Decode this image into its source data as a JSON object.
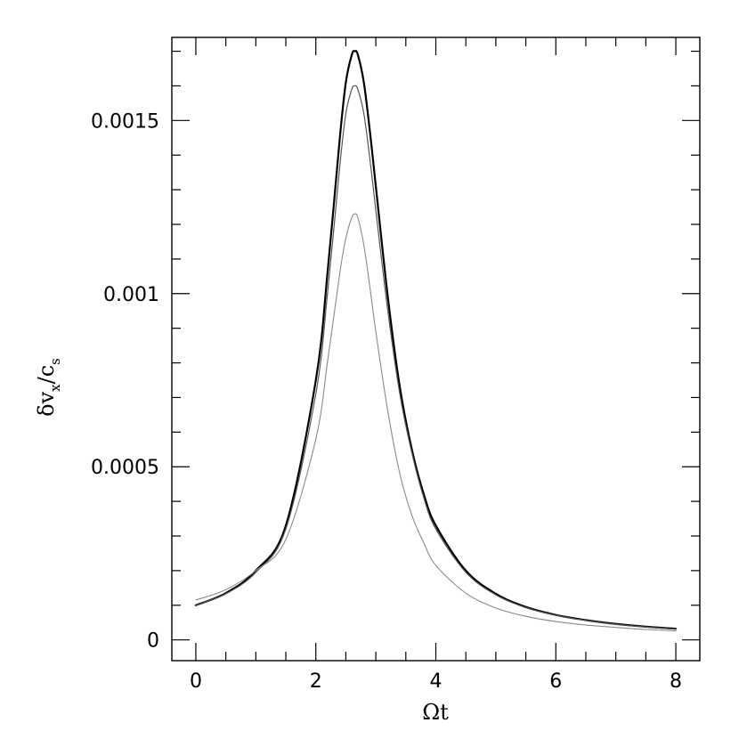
{
  "chart_data": {
    "type": "line",
    "xlabel": "Ωt",
    "ylabel": {
      "main": "δv",
      "sub1": "x",
      "mid": "/c",
      "sub2": "s"
    },
    "xlim": [
      -0.4,
      8.4
    ],
    "ylim": [
      -6e-05,
      0.00174
    ],
    "x_ticks": [
      0,
      2,
      4,
      6,
      8
    ],
    "x_tick_labels": [
      "0",
      "2",
      "4",
      "6",
      "8"
    ],
    "x_minor_step": 0.5,
    "y_ticks": [
      0,
      0.0005,
      0.001,
      0.0015
    ],
    "y_tick_labels": [
      "0",
      "0.0005",
      "0.001",
      "0.0015"
    ],
    "y_minor_step": 0.0001,
    "grid": false,
    "legend": "none",
    "series": [
      {
        "color": "#000000",
        "width": 2.2,
        "x": [
          0,
          0.5,
          1,
          1.5,
          2,
          2.2,
          2.4,
          2.5,
          2.6,
          2.65,
          2.7,
          2.8,
          2.9,
          3.0,
          3.2,
          3.4,
          3.6,
          3.8,
          4,
          4.5,
          5,
          5.5,
          6,
          6.5,
          7,
          7.5,
          8
        ],
        "y": [
          0.0001,
          0.000135,
          0.0002,
          0.00033,
          0.00075,
          0.00107,
          0.00145,
          0.00161,
          0.00169,
          0.0017,
          0.00169,
          0.00161,
          0.00147,
          0.00131,
          0.00099,
          0.00073,
          0.00055,
          0.00042,
          0.00033,
          0.0002,
          0.000133,
          9.5e-05,
          7.2e-05,
          5.7e-05,
          4.6e-05,
          3.8e-05,
          3.2e-05
        ]
      },
      {
        "color": "#555555",
        "width": 1.2,
        "x": [
          0,
          0.5,
          1,
          1.5,
          2,
          2.2,
          2.4,
          2.5,
          2.6,
          2.65,
          2.7,
          2.8,
          2.9,
          3.0,
          3.2,
          3.4,
          3.6,
          3.8,
          4,
          4.5,
          5,
          5.5,
          6,
          6.5,
          7,
          7.5,
          8
        ],
        "y": [
          0.0001,
          0.000133,
          0.000195,
          0.00032,
          0.00071,
          0.00101,
          0.00137,
          0.00152,
          0.00159,
          0.0016,
          0.00159,
          0.00152,
          0.00139,
          0.00124,
          0.00095,
          0.00071,
          0.00054,
          0.00041,
          0.00032,
          0.000195,
          0.00013,
          9.3e-05,
          7.1e-05,
          5.6e-05,
          4.5e-05,
          3.7e-05,
          3.1e-05
        ]
      },
      {
        "color": "#8a8a8a",
        "width": 1.1,
        "x": [
          0,
          0.5,
          1,
          1.5,
          2,
          2.2,
          2.4,
          2.5,
          2.6,
          2.65,
          2.7,
          2.8,
          2.9,
          3.0,
          3.2,
          3.4,
          3.6,
          3.8,
          4,
          4.5,
          5,
          5.5,
          6,
          6.5,
          7,
          7.5,
          8
        ],
        "y": [
          0.000115,
          0.000145,
          0.0002,
          0.00029,
          0.00058,
          0.00081,
          0.00106,
          0.00116,
          0.00122,
          0.00123,
          0.00122,
          0.00114,
          0.00102,
          0.00089,
          0.00066,
          0.00048,
          0.00036,
          0.00028,
          0.000215,
          0.000135,
          9.2e-05,
          6.8e-05,
          5.3e-05,
          4.3e-05,
          3.6e-05,
          3e-05,
          2.6e-05
        ]
      }
    ]
  }
}
